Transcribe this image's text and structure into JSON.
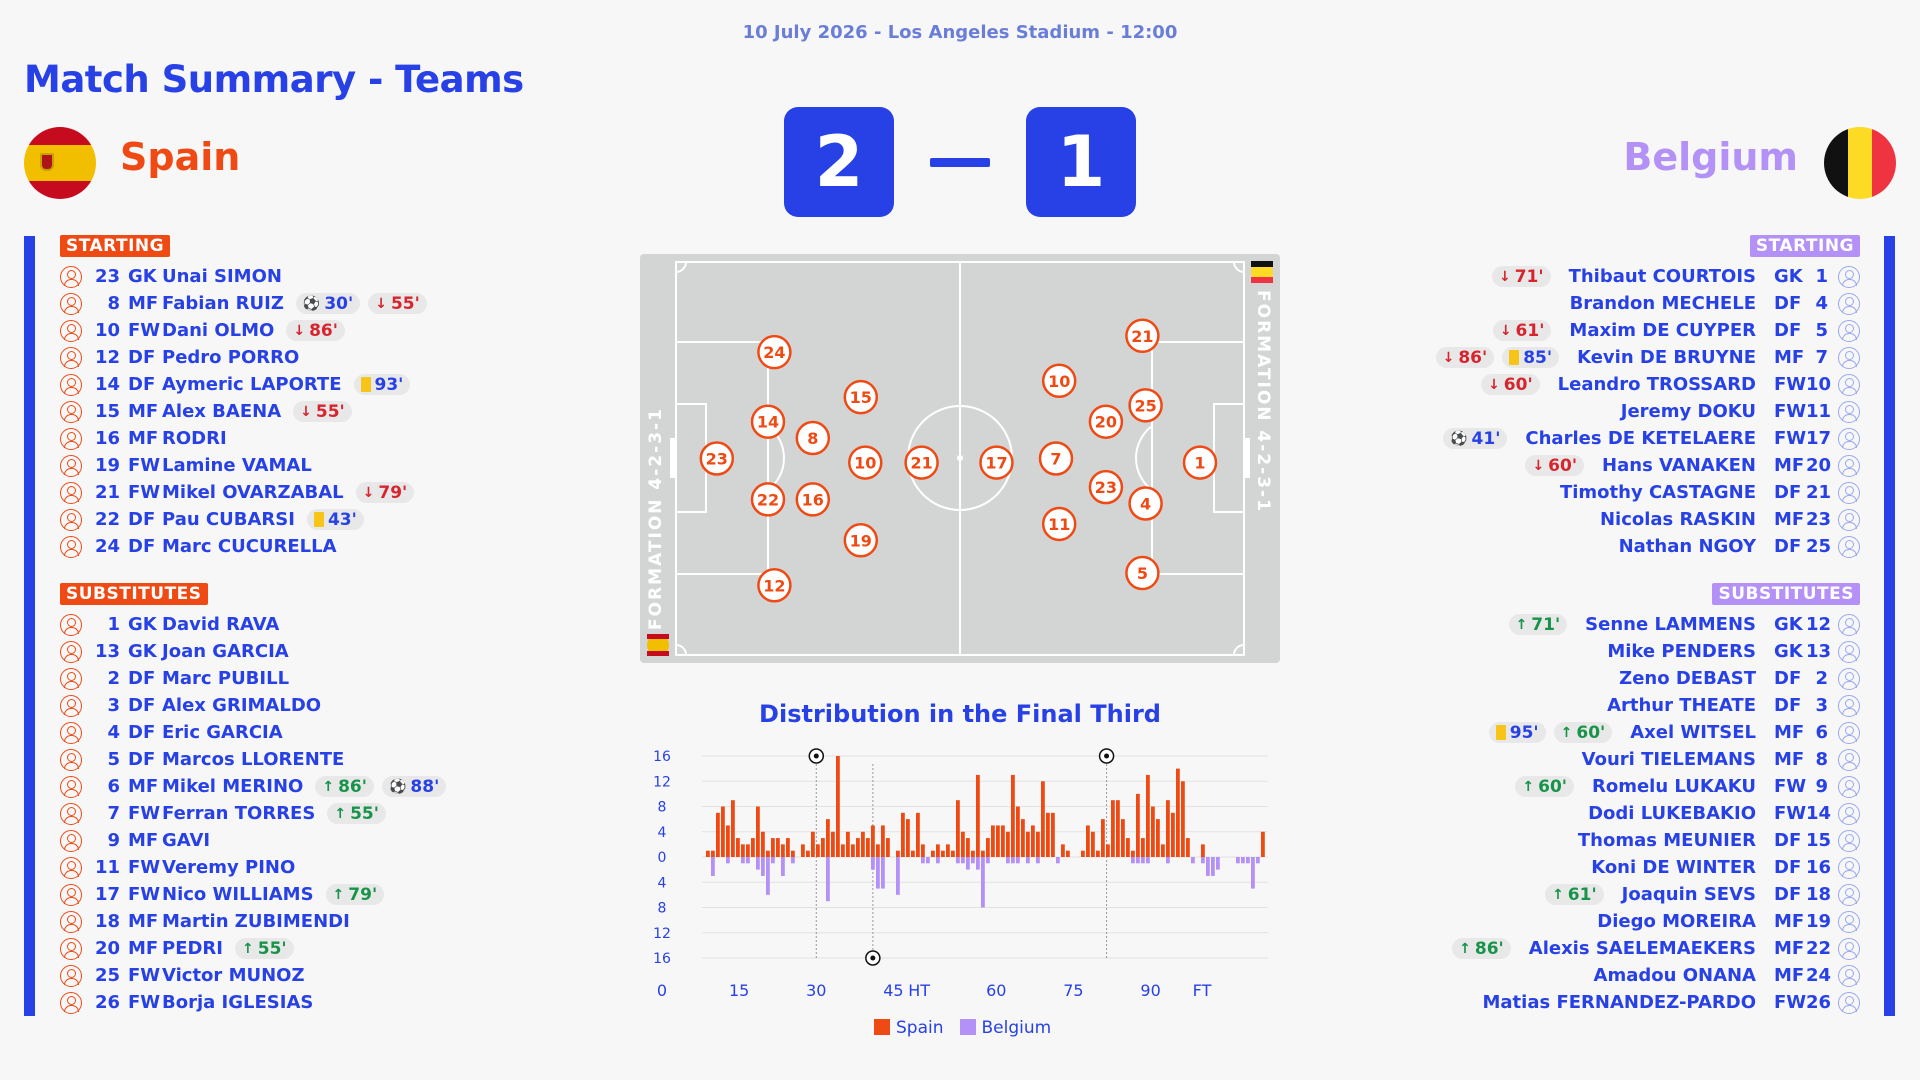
{
  "header": {
    "meta": "10 July 2026 - Los Angeles Stadium - 12:00",
    "title": "Match Summary - Teams"
  },
  "home": {
    "name": "Spain",
    "score": "2",
    "formation": "FORMATION 4-2-3-1",
    "color": "#f04a14",
    "starting_label": "STARTING",
    "subs_label": "SUBSTITUTES",
    "starting": [
      {
        "num": "23",
        "pos": "GK",
        "name": "Unai SIMON",
        "events": []
      },
      {
        "num": "8",
        "pos": "MF",
        "name": "Fabian RUIZ",
        "events": [
          {
            "type": "goal",
            "min": "30'"
          },
          {
            "type": "out",
            "min": "55'"
          }
        ]
      },
      {
        "num": "10",
        "pos": "FW",
        "name": "Dani OLMO",
        "events": [
          {
            "type": "out",
            "min": "86'"
          }
        ]
      },
      {
        "num": "12",
        "pos": "DF",
        "name": "Pedro PORRO",
        "events": []
      },
      {
        "num": "14",
        "pos": "DF",
        "name": "Aymeric LAPORTE",
        "events": [
          {
            "type": "yellow",
            "min": "93'"
          }
        ]
      },
      {
        "num": "15",
        "pos": "MF",
        "name": "Alex BAENA",
        "events": [
          {
            "type": "out",
            "min": "55'"
          }
        ]
      },
      {
        "num": "16",
        "pos": "MF",
        "name": "RODRI",
        "events": []
      },
      {
        "num": "19",
        "pos": "FW",
        "name": "Lamine VAMAL",
        "events": []
      },
      {
        "num": "21",
        "pos": "FW",
        "name": "Mikel OVARZABAL",
        "events": [
          {
            "type": "out",
            "min": "79'"
          }
        ]
      },
      {
        "num": "22",
        "pos": "DF",
        "name": "Pau CUBARSI",
        "events": [
          {
            "type": "yellow",
            "min": "43'"
          }
        ]
      },
      {
        "num": "24",
        "pos": "DF",
        "name": "Marc CUCURELLA",
        "events": []
      }
    ],
    "subs": [
      {
        "num": "1",
        "pos": "GK",
        "name": "David RAVA",
        "events": []
      },
      {
        "num": "13",
        "pos": "GK",
        "name": "Joan GARCIA",
        "events": []
      },
      {
        "num": "2",
        "pos": "DF",
        "name": "Marc PUBILL",
        "events": []
      },
      {
        "num": "3",
        "pos": "DF",
        "name": "Alex GRIMALDO",
        "events": []
      },
      {
        "num": "4",
        "pos": "DF",
        "name": "Eric GARCIA",
        "events": []
      },
      {
        "num": "5",
        "pos": "DF",
        "name": "Marcos LLORENTE",
        "events": []
      },
      {
        "num": "6",
        "pos": "MF",
        "name": "Mikel MERINO",
        "events": [
          {
            "type": "in",
            "min": "86'"
          },
          {
            "type": "goal",
            "min": "88'"
          }
        ]
      },
      {
        "num": "7",
        "pos": "FW",
        "name": "Ferran TORRES",
        "events": [
          {
            "type": "in",
            "min": "55'"
          }
        ]
      },
      {
        "num": "9",
        "pos": "MF",
        "name": "GAVI",
        "events": []
      },
      {
        "num": "11",
        "pos": "FW",
        "name": "Veremy PINO",
        "events": []
      },
      {
        "num": "17",
        "pos": "FW",
        "name": "Nico WILLIAMS",
        "events": [
          {
            "type": "in",
            "min": "79'"
          }
        ]
      },
      {
        "num": "18",
        "pos": "MF",
        "name": "Martin ZUBIMENDI",
        "events": []
      },
      {
        "num": "20",
        "pos": "MF",
        "name": "PEDRI",
        "events": [
          {
            "type": "in",
            "min": "55'"
          }
        ]
      },
      {
        "num": "25",
        "pos": "FW",
        "name": "Victor MUNOZ",
        "events": []
      },
      {
        "num": "26",
        "pos": "FW",
        "name": "Borja IGLESIAS",
        "events": []
      }
    ]
  },
  "away": {
    "name": "Belgium",
    "score": "1",
    "formation": "FORMATION 4-2-3-1",
    "color": "#b491f6",
    "starting_label": "STARTING",
    "subs_label": "SUBSTITUTES",
    "starting": [
      {
        "num": "1",
        "pos": "GK",
        "name": "Thibaut COURTOIS",
        "events": [
          {
            "type": "out",
            "min": "71'"
          }
        ]
      },
      {
        "num": "4",
        "pos": "DF",
        "name": "Brandon MECHELE",
        "events": []
      },
      {
        "num": "5",
        "pos": "DF",
        "name": "Maxim DE CUYPER",
        "events": [
          {
            "type": "out",
            "min": "61'"
          }
        ]
      },
      {
        "num": "7",
        "pos": "MF",
        "name": "Kevin DE BRUYNE",
        "events": [
          {
            "type": "out",
            "min": "86'"
          },
          {
            "type": "yellow",
            "min": "85'"
          }
        ]
      },
      {
        "num": "10",
        "pos": "FW",
        "name": "Leandro TROSSARD",
        "events": [
          {
            "type": "out",
            "min": "60'"
          }
        ]
      },
      {
        "num": "11",
        "pos": "FW",
        "name": "Jeremy DOKU",
        "events": []
      },
      {
        "num": "17",
        "pos": "FW",
        "name": "Charles DE KETELAERE",
        "events": [
          {
            "type": "goal",
            "min": "41'"
          }
        ]
      },
      {
        "num": "20",
        "pos": "MF",
        "name": "Hans VANAKEN",
        "events": [
          {
            "type": "out",
            "min": "60'"
          }
        ]
      },
      {
        "num": "21",
        "pos": "DF",
        "name": "Timothy CASTAGNE",
        "events": []
      },
      {
        "num": "23",
        "pos": "MF",
        "name": "Nicolas RASKIN",
        "events": []
      },
      {
        "num": "25",
        "pos": "DF",
        "name": "Nathan NGOY",
        "events": []
      }
    ],
    "subs": [
      {
        "num": "12",
        "pos": "GK",
        "name": "Senne LAMMENS",
        "events": [
          {
            "type": "in",
            "min": "71'"
          }
        ]
      },
      {
        "num": "13",
        "pos": "GK",
        "name": "Mike PENDERS",
        "events": []
      },
      {
        "num": "2",
        "pos": "DF",
        "name": "Zeno DEBAST",
        "events": []
      },
      {
        "num": "3",
        "pos": "DF",
        "name": "Arthur THEATE",
        "events": []
      },
      {
        "num": "6",
        "pos": "MF",
        "name": "Axel WITSEL",
        "events": [
          {
            "type": "yellow",
            "min": "95'"
          },
          {
            "type": "in",
            "min": "60'"
          }
        ]
      },
      {
        "num": "8",
        "pos": "MF",
        "name": "Vouri TIELEMANS",
        "events": []
      },
      {
        "num": "9",
        "pos": "FW",
        "name": "Romelu LUKAKU",
        "events": [
          {
            "type": "in",
            "min": "60'"
          }
        ]
      },
      {
        "num": "14",
        "pos": "FW",
        "name": "Dodi LUKEBAKIO",
        "events": []
      },
      {
        "num": "15",
        "pos": "DF",
        "name": "Thomas MEUNIER",
        "events": []
      },
      {
        "num": "16",
        "pos": "DF",
        "name": "Koni DE WINTER",
        "events": []
      },
      {
        "num": "18",
        "pos": "DF",
        "name": "Joaquin SEVS",
        "events": [
          {
            "type": "in",
            "min": "61'"
          }
        ]
      },
      {
        "num": "19",
        "pos": "MF",
        "name": "Diego MOREIRA",
        "events": []
      },
      {
        "num": "22",
        "pos": "MF",
        "name": "Alexis SAELEMAEKERS",
        "events": [
          {
            "type": "in",
            "min": "86'"
          }
        ]
      },
      {
        "num": "24",
        "pos": "MF",
        "name": "Amadou ONANA",
        "events": []
      },
      {
        "num": "26",
        "pos": "FW",
        "name": "Matias FERNANDEZ-PARDO",
        "events": []
      }
    ]
  },
  "pitch": {
    "home_players": [
      {
        "num": "23",
        "fx": 0.12,
        "fy": 0.5
      },
      {
        "num": "24",
        "fx": 0.21,
        "fy": 0.24
      },
      {
        "num": "14",
        "fx": 0.2,
        "fy": 0.41
      },
      {
        "num": "22",
        "fx": 0.2,
        "fy": 0.6
      },
      {
        "num": "12",
        "fx": 0.21,
        "fy": 0.81
      },
      {
        "num": "8",
        "fx": 0.27,
        "fy": 0.45
      },
      {
        "num": "16",
        "fx": 0.27,
        "fy": 0.6
      },
      {
        "num": "15",
        "fx": 0.345,
        "fy": 0.35
      },
      {
        "num": "10",
        "fx": 0.352,
        "fy": 0.51
      },
      {
        "num": "19",
        "fx": 0.345,
        "fy": 0.7
      },
      {
        "num": "21",
        "fx": 0.44,
        "fy": 0.51
      }
    ],
    "away_players": [
      {
        "num": "1",
        "fx": 0.875,
        "fy": 0.51
      },
      {
        "num": "21",
        "fx": 0.785,
        "fy": 0.2
      },
      {
        "num": "25",
        "fx": 0.79,
        "fy": 0.37
      },
      {
        "num": "4",
        "fx": 0.79,
        "fy": 0.61
      },
      {
        "num": "5",
        "fx": 0.785,
        "fy": 0.78
      },
      {
        "num": "20",
        "fx": 0.728,
        "fy": 0.41
      },
      {
        "num": "23",
        "fx": 0.728,
        "fy": 0.57
      },
      {
        "num": "10",
        "fx": 0.655,
        "fy": 0.31
      },
      {
        "num": "7",
        "fx": 0.65,
        "fy": 0.5
      },
      {
        "num": "11",
        "fx": 0.655,
        "fy": 0.66
      },
      {
        "num": "17",
        "fx": 0.557,
        "fy": 0.51
      }
    ]
  },
  "chart_data": {
    "type": "bar",
    "title": "Distribution in the Final Third",
    "x_ticks": [
      "0",
      "15",
      "30",
      "45",
      "HT",
      "60",
      "75",
      "90",
      "FT"
    ],
    "y_ticks": [
      "16",
      "12",
      "8",
      "4",
      "0",
      "4",
      "8",
      "12",
      "16"
    ],
    "ylim": [
      -16,
      16
    ],
    "legend": [
      "Spain",
      "Belgium"
    ],
    "series": [
      {
        "name": "Spain",
        "values": [
          1,
          1,
          7,
          8,
          5,
          9,
          3,
          2,
          2,
          3,
          8,
          4,
          1,
          3,
          3,
          2,
          3,
          1,
          0,
          2,
          1,
          4,
          2,
          3,
          6,
          4,
          16,
          2,
          4,
          2,
          3,
          4,
          3,
          5,
          2,
          5,
          3,
          0,
          1,
          7,
          6,
          1,
          7,
          2,
          0,
          1,
          2,
          1,
          2,
          1,
          9,
          4,
          3,
          1,
          13,
          1,
          3,
          5,
          5,
          5,
          4,
          13,
          8,
          6,
          4,
          5,
          4,
          12,
          7,
          7,
          0,
          2,
          1,
          0,
          0,
          1,
          5,
          4,
          1,
          6,
          2,
          9,
          9,
          6,
          3,
          1,
          10,
          3,
          13,
          8,
          6,
          2,
          9,
          7,
          14,
          12,
          3,
          0,
          0,
          2,
          0,
          0,
          0,
          0,
          0,
          0,
          0,
          0,
          0,
          0,
          0,
          4
        ]
      },
      {
        "name": "Belgium",
        "values": [
          0,
          -3,
          0,
          0,
          -1,
          0,
          0,
          -1,
          -1,
          0,
          -2,
          -3,
          -6,
          -1,
          0,
          -3,
          0,
          -1,
          0,
          0,
          0,
          0,
          0,
          0,
          -7,
          0,
          0,
          0,
          0,
          0,
          0,
          0,
          0,
          -2,
          -5,
          -5,
          0,
          0,
          -6,
          0,
          0,
          0,
          0,
          -1,
          -1,
          0,
          -1,
          0,
          0,
          0,
          -1,
          -1,
          -2,
          -1,
          -2,
          -8,
          -1,
          0,
          0,
          0,
          -1,
          -1,
          -1,
          0,
          -1,
          0,
          -1,
          0,
          0,
          0,
          -1,
          0,
          0,
          0,
          0,
          0,
          0,
          0,
          0,
          0,
          0,
          0,
          0,
          0,
          0,
          -1,
          -1,
          -1,
          -1,
          0,
          0,
          0,
          -1,
          0,
          0,
          0,
          0,
          -1,
          0,
          -1,
          -3,
          -3,
          -2,
          0,
          0,
          0,
          -1,
          -1,
          -1,
          -5,
          -1,
          0
        ]
      }
    ],
    "goals": [
      {
        "team": "Spain",
        "minute": "30'"
      },
      {
        "team": "Belgium",
        "minute": "41'"
      },
      {
        "team": "Spain",
        "minute": "88'"
      }
    ]
  }
}
